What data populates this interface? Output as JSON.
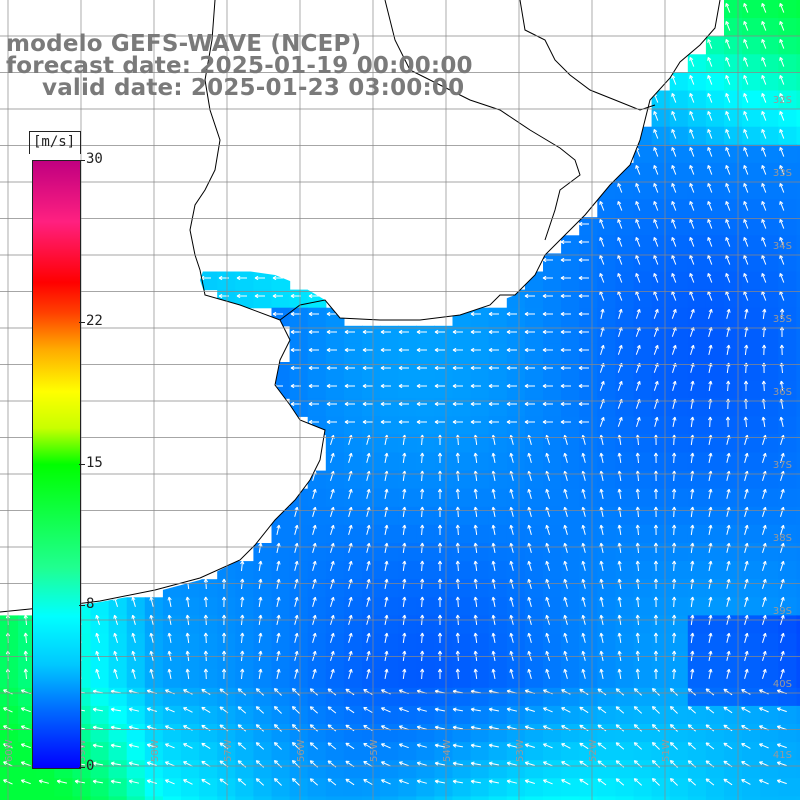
{
  "title": {
    "line1": "modelo GEFS-WAVE (NCEP)",
    "line2": "forecast date: 2025-01-19 00:00:00",
    "line3": "valid date: 2025-01-23 03:00:00"
  },
  "colorbar": {
    "unit": "[m/s]",
    "ticks": [
      "30",
      "22",
      "15",
      "8",
      "0"
    ],
    "tick_values": [
      30,
      22,
      15,
      8,
      0
    ],
    "min": 0,
    "max": 30,
    "colors": [
      "#0000ff",
      "#0070ff",
      "#00c8ff",
      "#00ffff",
      "#00ff00",
      "#ffff00",
      "#ff8000",
      "#ff0000",
      "#c00080"
    ]
  },
  "map": {
    "variable": "wind speed and direction",
    "lat_labels": [
      "32S",
      "33S",
      "34S",
      "35S",
      "36S",
      "37S",
      "38S",
      "39S",
      "40S",
      "41S"
    ],
    "lon_labels": [
      "60W",
      "59W",
      "58W",
      "57W",
      "56W",
      "55W",
      "54W",
      "53W",
      "52W",
      "51W"
    ],
    "colors": {
      "land": "#ffffff",
      "coastline": "#000000",
      "grid": "#888888",
      "arrow": "#ffffff",
      "title_text": "#7a7a7a"
    }
  }
}
